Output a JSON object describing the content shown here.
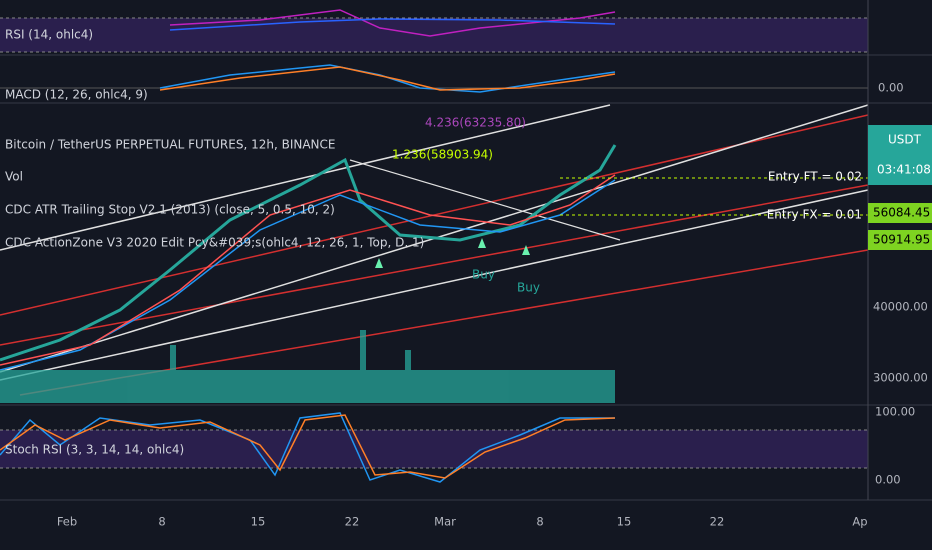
{
  "panels": {
    "rsi": {
      "label": "RSI (14, ohlc4)"
    },
    "macd": {
      "label": "MACD (12, 26, ohlc4, 9)",
      "axis_label": "0.00"
    },
    "main": {
      "title": "Bitcoin / TetherUS PERPETUAL FUTURES, 12h, BINANCE",
      "indicators": [
        "Vol",
        "CDC ATR Trailing Stop V2.1 (2013) (close, 5, 0.5, 10, 2)",
        "CDC ActionZone V3 2020 Edit Pcy&#039;s(ohlc4, 12, 26, 1, Top, D, 1)"
      ],
      "currency": "USDT",
      "countdown": "03:41:08",
      "price_labels": [
        "56084.45",
        "50914.95"
      ],
      "axis_labels": [
        "40000.00",
        "30000.00"
      ],
      "entries": [
        "Entry FT = 0.02",
        "Entry FX = 0.01"
      ],
      "fib_labels": [
        "4.236(63235.80)",
        "1.236(58903.94)"
      ],
      "signals": [
        "Buy",
        "Buy"
      ]
    },
    "stoch": {
      "label": "Stoch RSI (3, 3, 14, 14, ohlc4)",
      "axis_labels": [
        "100.00",
        "0.00"
      ]
    }
  },
  "time_axis": [
    "Feb",
    "8",
    "15",
    "22",
    "Mar",
    "8",
    "15",
    "22",
    "Ap"
  ]
}
